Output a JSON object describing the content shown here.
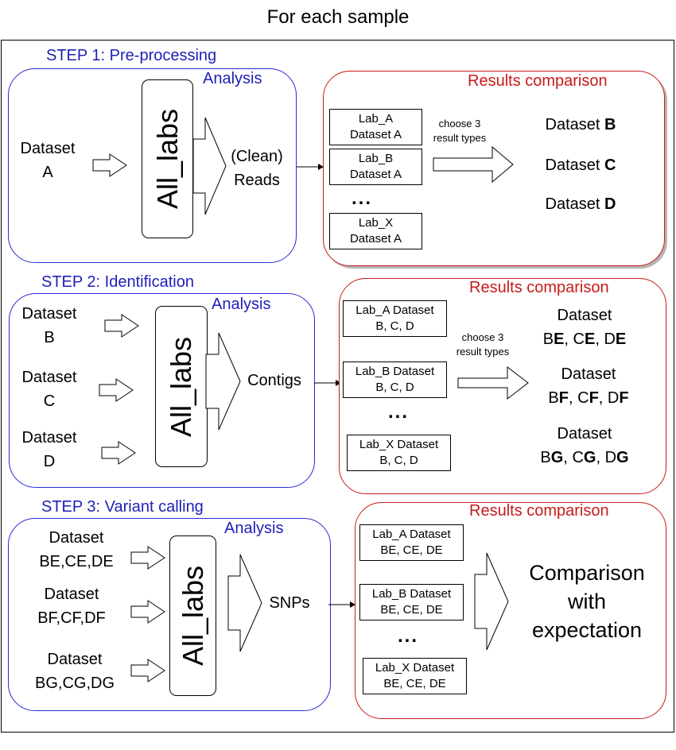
{
  "title": "For each sample",
  "steps": [
    {
      "title": "STEP 1: Pre-processing",
      "analysis_label": "Analysis",
      "inputs": [
        [
          "Dataset",
          "A"
        ]
      ],
      "tool_label": "All_labs",
      "output": [
        "(Clean)",
        "Reads"
      ],
      "results_label": "Results comparison",
      "lab_boxes": [
        [
          "Lab_A",
          "Dataset A"
        ],
        [
          "Lab_B",
          "Dataset A"
        ],
        [
          "Lab_X",
          "Dataset A"
        ]
      ],
      "ellipsis": "...",
      "choose": [
        "choose 3",
        "result types"
      ],
      "results": [
        {
          "line1": "",
          "plain": "Dataset ",
          "bold": "B"
        },
        {
          "line1": "",
          "plain": "Dataset ",
          "bold": "C"
        },
        {
          "line1": "",
          "plain": "Dataset ",
          "bold": "D"
        }
      ]
    },
    {
      "title": "STEP 2: Identification",
      "analysis_label": "Analysis",
      "inputs": [
        [
          "Dataset",
          "B"
        ],
        [
          "Dataset",
          "C"
        ],
        [
          "Dataset",
          "D"
        ]
      ],
      "tool_label": "All_labs",
      "output": [
        "Contigs"
      ],
      "results_label": "Results comparison",
      "lab_boxes": [
        [
          "Lab_A Dataset",
          "B, C, D"
        ],
        [
          "Lab_B Dataset",
          "B, C, D"
        ],
        [
          "Lab_X Dataset",
          "B, C, D"
        ]
      ],
      "ellipsis": "...",
      "choose": [
        "choose 3",
        "result types"
      ],
      "results": [
        {
          "line1": "Dataset",
          "parts": [
            [
              "B",
              "E"
            ],
            [
              "C",
              "E"
            ],
            [
              "D",
              "E"
            ]
          ]
        },
        {
          "line1": "Dataset",
          "parts": [
            [
              "B",
              "F"
            ],
            [
              "C",
              "F"
            ],
            [
              "D",
              "F"
            ]
          ]
        },
        {
          "line1": "Dataset",
          "parts": [
            [
              "B",
              "G"
            ],
            [
              "C",
              "G"
            ],
            [
              "D",
              "G"
            ]
          ]
        }
      ]
    },
    {
      "title": "STEP 3: Variant calling",
      "analysis_label": "Analysis",
      "inputs": [
        [
          "Dataset",
          "BE,CE,DE"
        ],
        [
          "Dataset",
          "BF,CF,DF"
        ],
        [
          "Dataset",
          "BG,CG,DG"
        ]
      ],
      "tool_label": "All_labs",
      "output": [
        "SNPs"
      ],
      "results_label": "Results comparison",
      "lab_boxes": [
        [
          "Lab_A Dataset",
          "BE, CE, DE"
        ],
        [
          "Lab_B Dataset",
          "BE, CE, DE"
        ],
        [
          "Lab_X Dataset",
          "BE, CE, DE"
        ]
      ],
      "ellipsis": "...",
      "comparison": [
        "Comparison",
        "with",
        "expectation"
      ]
    }
  ]
}
